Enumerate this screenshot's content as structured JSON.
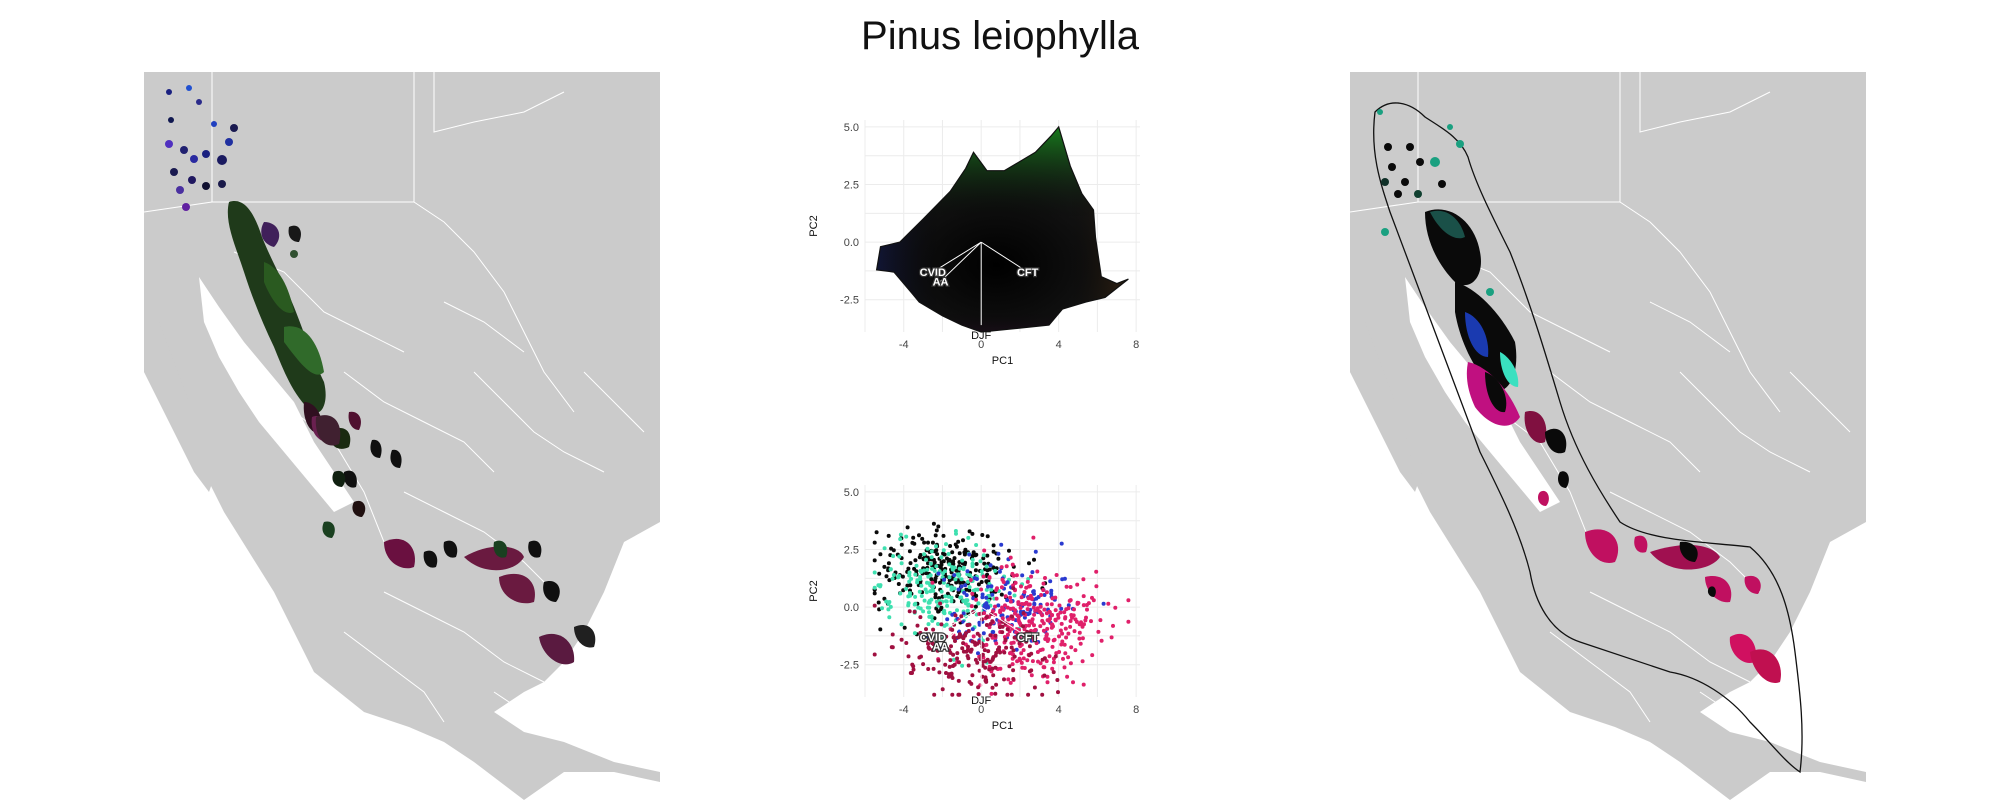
{
  "figure": {
    "title": "Pinus leiophylla"
  },
  "colors": {
    "land": "#cbcbcb",
    "borders": "#ffffff",
    "dark_cluster": "#0a0a0a",
    "teal": "#3fe0b0",
    "magenta": "#e0206a",
    "blue": "#2a3ad0"
  },
  "maps": {
    "left": {
      "description_icon": "map-icon"
    },
    "right": {
      "description_icon": "map-icon"
    }
  },
  "chart_data": [
    {
      "type": "scatter",
      "name_hint": "pca-top",
      "xlabel": "PC1",
      "ylabel": "PC2",
      "xlim": [
        -6,
        8.2
      ],
      "ylim": [
        -3.9,
        5.3
      ],
      "xticks": [
        "-4",
        "0",
        "4",
        "8"
      ],
      "yticks": [
        "5.0",
        "2.5",
        "0.0",
        "-2.5"
      ],
      "grid": true,
      "vectors": [
        {
          "label": "CVID",
          "x": -2.5,
          "y": -1.3
        },
        {
          "label": "AA",
          "x": -2.1,
          "y": -1.7
        },
        {
          "label": "CFT",
          "x": 2.4,
          "y": -1.3
        },
        {
          "label": "DJF",
          "x": 0.0,
          "y": -3.6
        }
      ],
      "hull": [
        [
          -5.2,
          -0.2
        ],
        [
          -4.2,
          0.0
        ],
        [
          -3.0,
          1.0
        ],
        [
          -1.6,
          2.2
        ],
        [
          -0.8,
          3.2
        ],
        [
          -0.4,
          3.9
        ],
        [
          0.3,
          3.1
        ],
        [
          1.2,
          3.1
        ],
        [
          2.0,
          3.5
        ],
        [
          2.8,
          3.9
        ],
        [
          3.6,
          4.6
        ],
        [
          4.0,
          5.0
        ],
        [
          4.6,
          3.3
        ],
        [
          5.2,
          2.1
        ],
        [
          5.8,
          1.4
        ],
        [
          5.9,
          0.2
        ],
        [
          6.2,
          -1.5
        ],
        [
          7.0,
          -1.8
        ],
        [
          7.6,
          -1.6
        ],
        [
          6.4,
          -2.4
        ],
        [
          5.4,
          -2.6
        ],
        [
          4.2,
          -2.9
        ],
        [
          3.5,
          -3.6
        ],
        [
          1.2,
          -3.8
        ],
        [
          0.0,
          -3.9
        ],
        [
          -1.0,
          -3.6
        ],
        [
          -2.0,
          -3.2
        ],
        [
          -3.2,
          -2.6
        ],
        [
          -3.6,
          -2.2
        ],
        [
          -4.5,
          -1.3
        ],
        [
          -5.4,
          -1.2
        ]
      ]
    },
    {
      "type": "scatter",
      "name_hint": "pca-bottom",
      "xlabel": "PC1",
      "ylabel": "PC2",
      "xlim": [
        -6,
        8.2
      ],
      "ylim": [
        -3.9,
        5.3
      ],
      "xticks": [
        "-4",
        "0",
        "4",
        "8"
      ],
      "yticks": [
        "5.0",
        "2.5",
        "0.0",
        "-2.5"
      ],
      "grid": true,
      "vectors": [
        {
          "label": "CVID",
          "x": -2.5,
          "y": -1.3
        },
        {
          "label": "AA",
          "x": -2.1,
          "y": -1.7
        },
        {
          "label": "CFT",
          "x": 2.4,
          "y": -1.3
        },
        {
          "label": "DJF",
          "x": 0.0,
          "y": -3.6
        }
      ],
      "series": [
        {
          "name": "",
          "color": "#0a0a0a",
          "center": [
            -1.8,
            1.6
          ],
          "spread": [
            1.8,
            0.9
          ],
          "count": 260
        },
        {
          "name": "",
          "color": "#3fe0b0",
          "center": [
            -2.2,
            0.8
          ],
          "spread": [
            1.7,
            1.0
          ],
          "count": 220
        },
        {
          "name": "",
          "color": "#2a3ad0",
          "center": [
            1.2,
            0.2
          ],
          "spread": [
            1.6,
            1.0
          ],
          "count": 140
        },
        {
          "name": "",
          "color": "#e0206a",
          "center": [
            2.6,
            -0.8
          ],
          "spread": [
            1.8,
            1.3
          ],
          "count": 320
        },
        {
          "name": "",
          "color": "#a01040",
          "center": [
            -0.2,
            -2.0
          ],
          "spread": [
            2.0,
            0.9
          ],
          "count": 200
        }
      ]
    }
  ]
}
